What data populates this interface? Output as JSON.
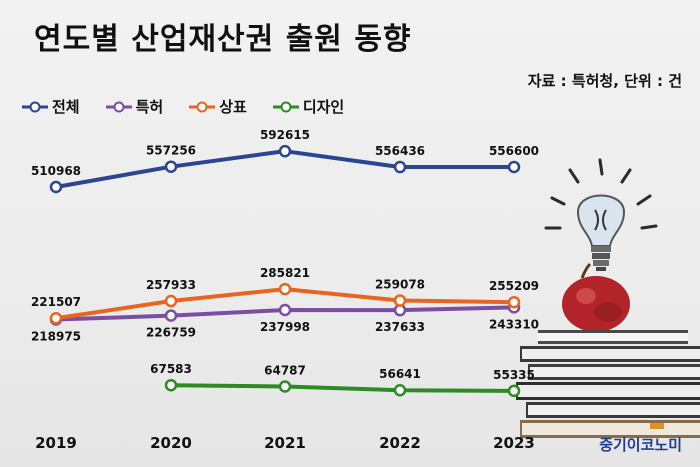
{
  "title": "연도별 산업재산권 출원 동향",
  "source_note": "자료 : 특허청, 단위 : 건",
  "brand": "중기이코노미",
  "colors": {
    "total": "#2b4590",
    "patent": "#7b4ea3",
    "trademark": "#e8651f",
    "design": "#2e8b22"
  },
  "chart_data": {
    "type": "line",
    "title": "연도별 산업재산권 출원 동향",
    "categories": [
      "2019",
      "2020",
      "2021",
      "2022",
      "2023"
    ],
    "series": [
      {
        "name": "전체",
        "key": "total",
        "values": [
          510968,
          557256,
          592615,
          556436,
          556600
        ]
      },
      {
        "name": "특허",
        "key": "patent",
        "values": [
          218975,
          226759,
          237998,
          237633,
          243310
        ]
      },
      {
        "name": "상표",
        "key": "trademark",
        "values": [
          221507,
          257933,
          285821,
          259078,
          255209
        ]
      },
      {
        "name": "디자인",
        "key": "design",
        "values": [
          null,
          67583,
          64787,
          56641,
          55335
        ]
      }
    ],
    "grid": false,
    "legend_position": "top-left"
  }
}
